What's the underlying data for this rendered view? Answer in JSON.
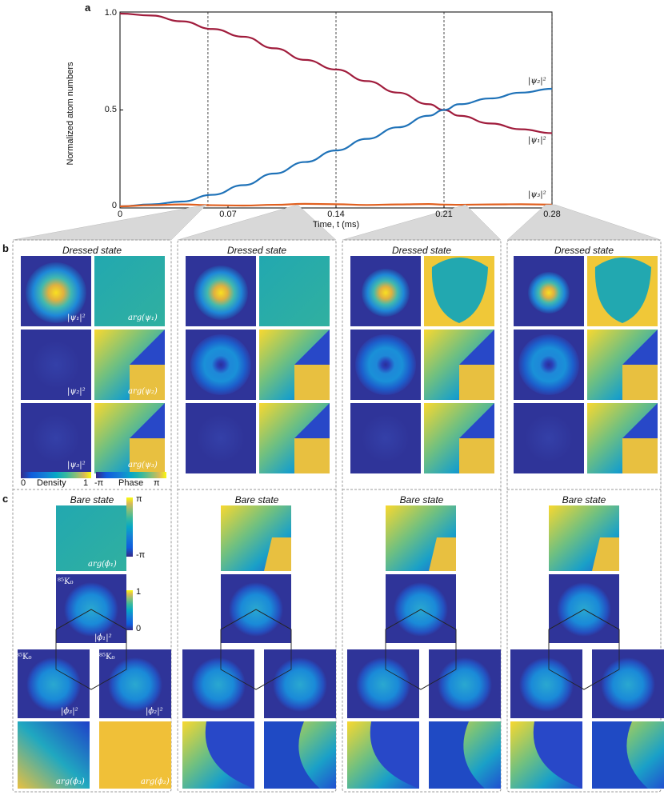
{
  "panel_a": {
    "letter": "a",
    "ylabel": "Normalized atom numbers",
    "xlabel": "Time, t (ms)",
    "xticks": [
      "0",
      "0.07",
      "0.14",
      "0.21",
      "0.28"
    ],
    "yticks": [
      "0",
      "0.5",
      "1.0"
    ],
    "curve_labels": {
      "psi1": "|ψ₁|²",
      "psi2": "|ψ₂|²",
      "psi3": "|ψ₃|²"
    }
  },
  "panel_b": {
    "letter": "b",
    "title": "Dressed state",
    "insets": {
      "d1": "|ψ₁|²",
      "p1": "arg(ψ₁)",
      "d2": "|ψ₂|²",
      "p2": "arg(ψ₂)",
      "d3": "|ψ₃|²",
      "p3": "arg(ψ₃)"
    },
    "colorbar_density": {
      "min": "0",
      "label": "Density",
      "max": "1"
    },
    "colorbar_phase": {
      "min": "-π",
      "label": "Phase",
      "max": "π"
    }
  },
  "panel_c": {
    "letter": "c",
    "title": "Bare state",
    "insets": {
      "p1": "arg(ϕ₁)",
      "d1": "|ϕ₁|²",
      "d3": "|ϕ₃|²",
      "d2": "|ϕ₂|²",
      "p3": "arg(ϕ₃)",
      "p2": "arg(ϕ₂)"
    },
    "isotope_tags": [
      "⁸⁵K₀",
      "⁸⁵K₀",
      "⁸⁵K₀"
    ],
    "colorbar_phase": {
      "max": "π",
      "min": "-π"
    },
    "colorbar_density": {
      "max": "1",
      "min": "0"
    }
  },
  "chart_data": {
    "type": "line",
    "title": "",
    "xlabel": "Time, t (ms)",
    "ylabel": "Normalized atom numbers",
    "xlim": [
      0,
      0.28
    ],
    "ylim": [
      0,
      1.0
    ],
    "grid": false,
    "markers_x": [
      0.057,
      0.14,
      0.21,
      0.28
    ],
    "x": [
      0,
      0.02,
      0.04,
      0.06,
      0.08,
      0.1,
      0.12,
      0.14,
      0.16,
      0.18,
      0.2,
      0.21,
      0.22,
      0.24,
      0.26,
      0.28
    ],
    "series": [
      {
        "name": "|ψ₁|²",
        "color": "#a01c3c",
        "values": [
          1.0,
          0.99,
          0.96,
          0.92,
          0.88,
          0.82,
          0.76,
          0.71,
          0.65,
          0.59,
          0.53,
          0.5,
          0.47,
          0.43,
          0.4,
          0.38
        ]
      },
      {
        "name": "|ψ₂|²",
        "color": "#1f72b8",
        "values": [
          0.0,
          0.01,
          0.025,
          0.06,
          0.11,
          0.17,
          0.23,
          0.29,
          0.35,
          0.41,
          0.47,
          0.5,
          0.53,
          0.56,
          0.59,
          0.61
        ]
      },
      {
        "name": "|ψ₃|²",
        "color": "#e06020",
        "values": [
          0.0,
          0.006,
          0.01,
          0.006,
          0.004,
          0.008,
          0.013,
          0.011,
          0.007,
          0.01,
          0.012,
          0.009,
          0.008,
          0.01,
          0.011,
          0.009
        ]
      }
    ]
  }
}
